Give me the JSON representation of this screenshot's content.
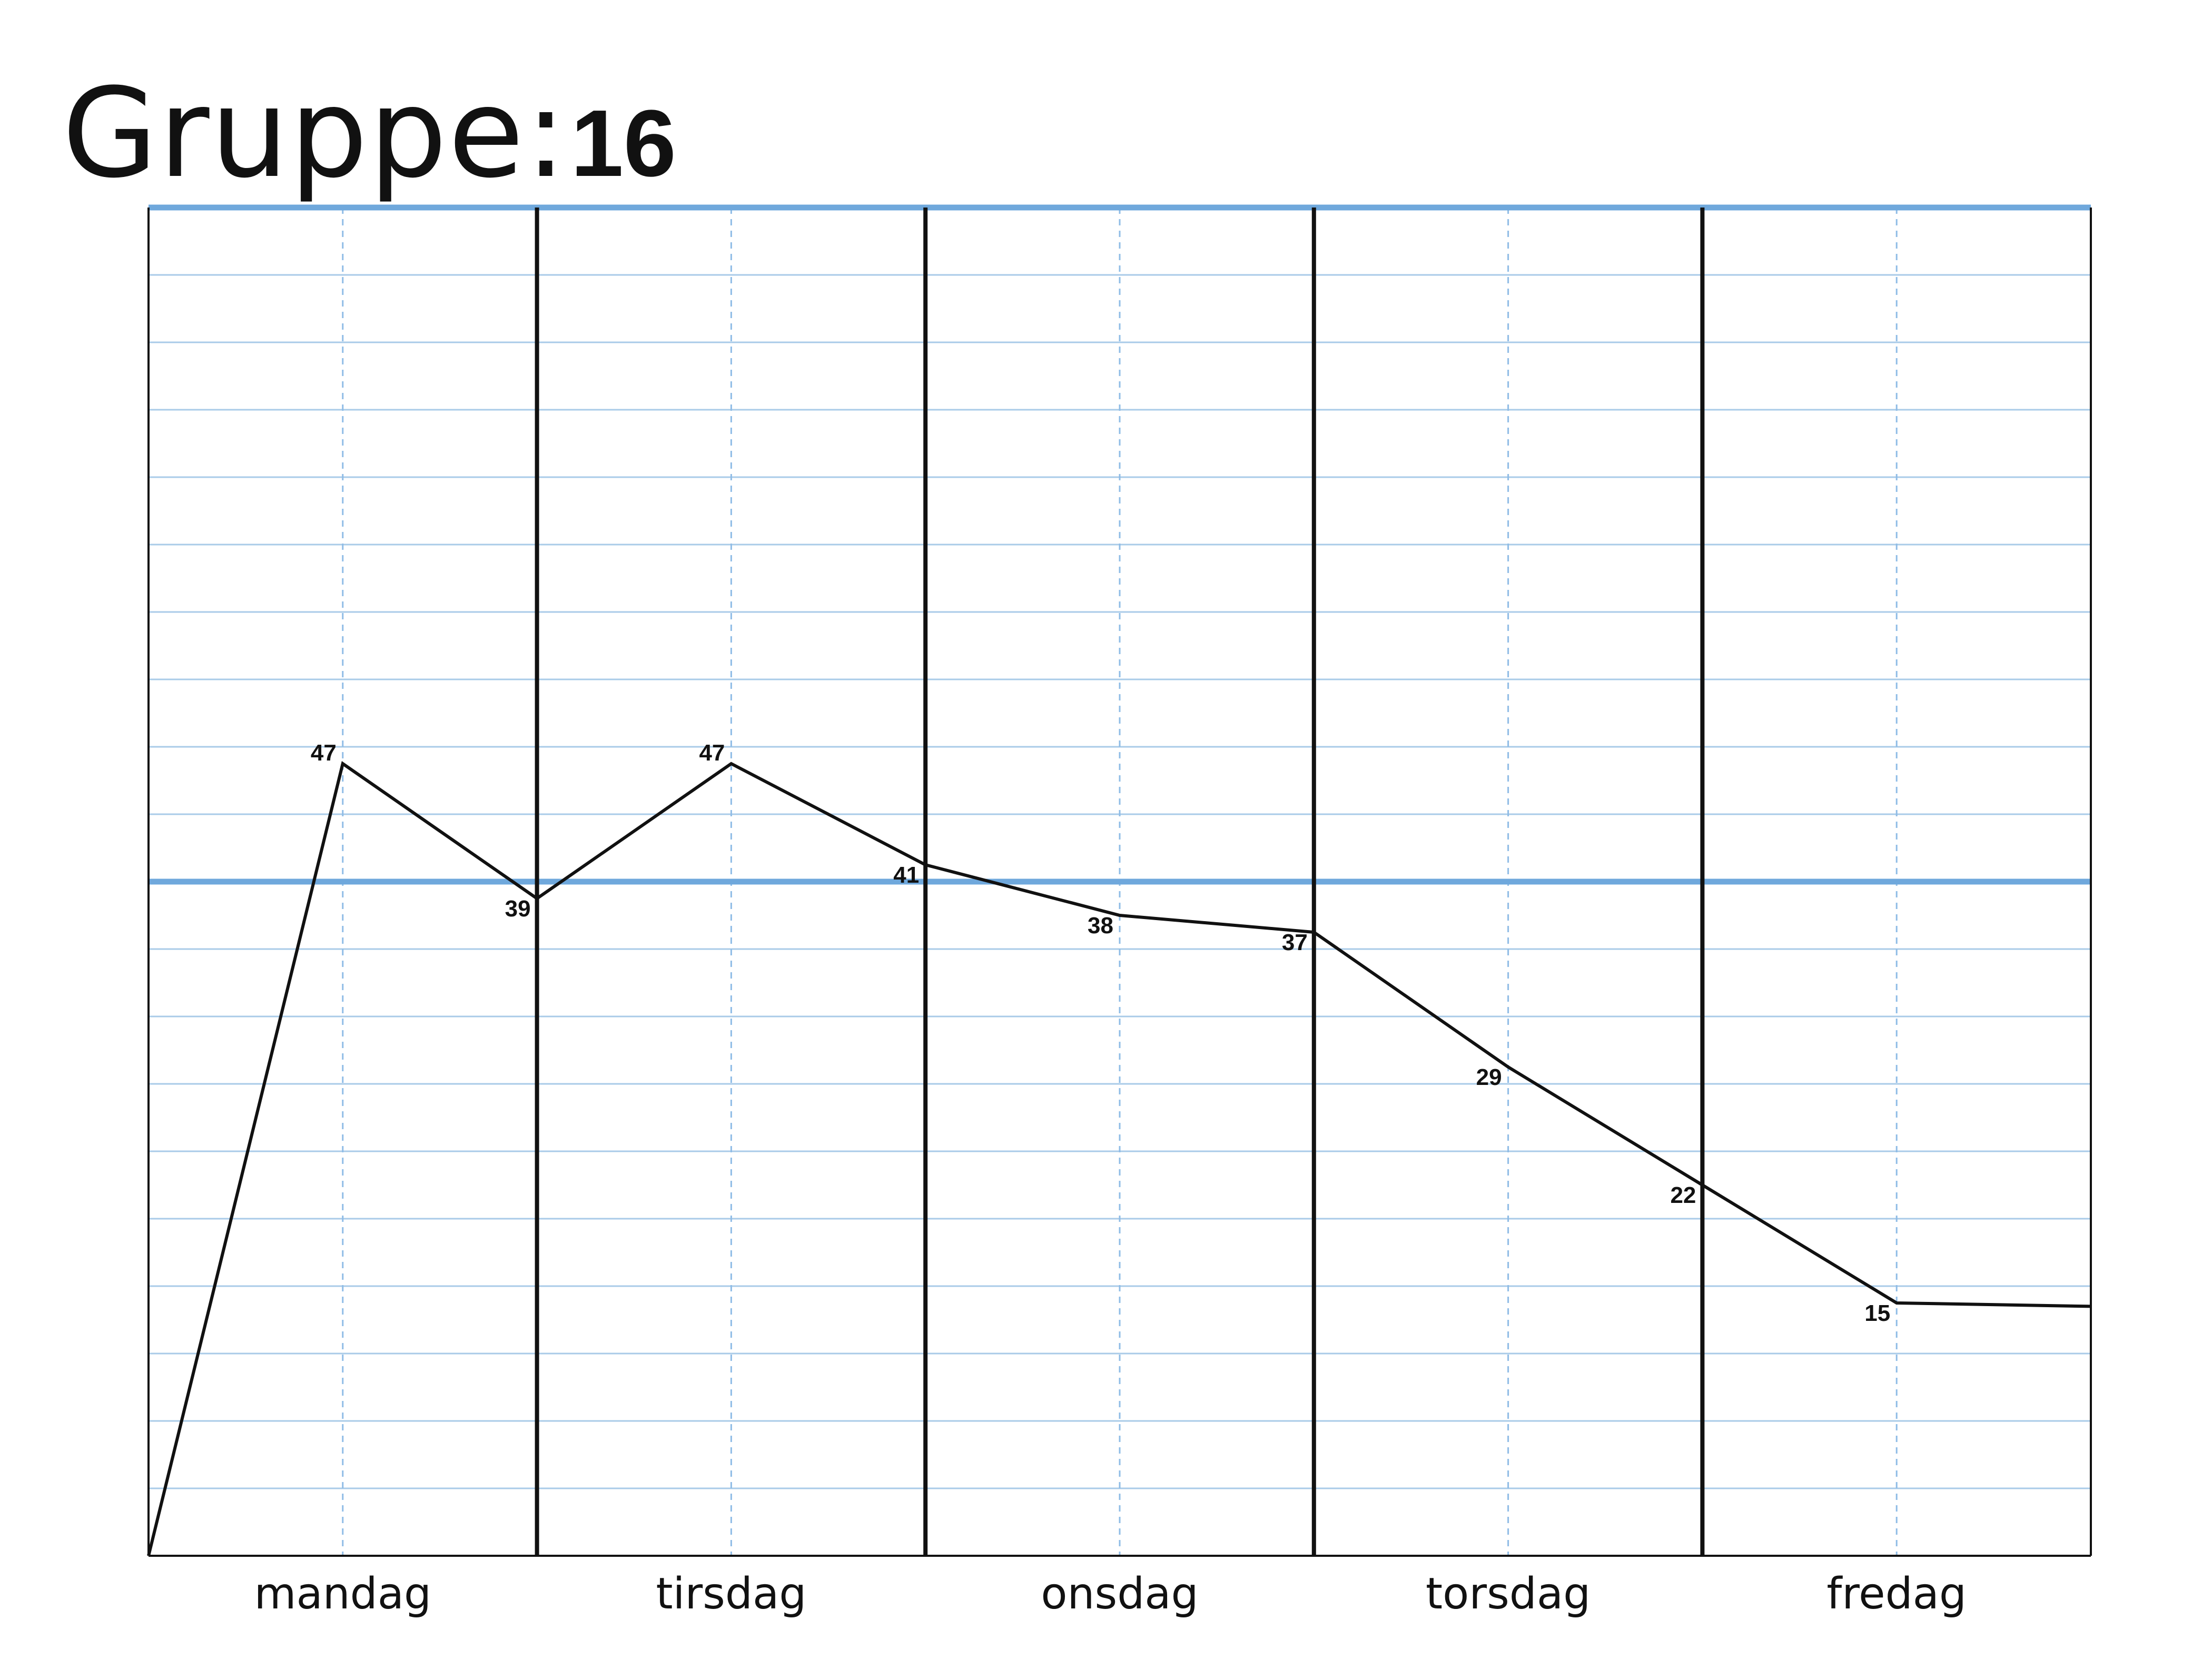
{
  "title": {
    "label": "Gruppe:",
    "value": "16"
  },
  "colors": {
    "grid": "#a9cbe8",
    "grid_dashed": "#8fbce6",
    "threshold": "#6fa8dc",
    "axis": "#111111",
    "line": "#111111"
  },
  "chart_data": {
    "type": "line",
    "categories": [
      "mandag",
      "tirsdag",
      "onsdag",
      "torsdag",
      "fredag"
    ],
    "ylim": [
      0,
      80
    ],
    "y_grid_step": 4,
    "threshold": 40,
    "grid": true,
    "series": [
      {
        "points": [
          {
            "x": 0.0,
            "y": 0,
            "label": ""
          },
          {
            "x": 0.5,
            "y": 47,
            "label": "47"
          },
          {
            "x": 1.0,
            "y": 39,
            "label": "39"
          },
          {
            "x": 1.5,
            "y": 47,
            "label": "47"
          },
          {
            "x": 2.0,
            "y": 41,
            "label": "41"
          },
          {
            "x": 2.5,
            "y": 38,
            "label": "38"
          },
          {
            "x": 3.0,
            "y": 37,
            "label": "37"
          },
          {
            "x": 3.5,
            "y": 29,
            "label": "29"
          },
          {
            "x": 4.0,
            "y": 22,
            "label": "22"
          },
          {
            "x": 4.5,
            "y": 15,
            "label": "15"
          },
          {
            "x": 5.0,
            "y": 14.8,
            "label": ""
          }
        ]
      }
    ]
  }
}
